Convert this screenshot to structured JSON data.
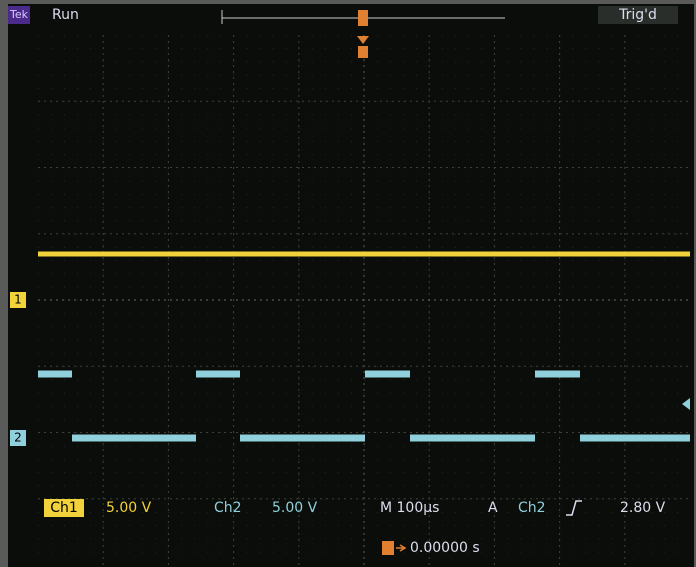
{
  "header": {
    "brand": "Tek",
    "status": "Run",
    "trigger_status": "Trig'd"
  },
  "channels": {
    "ch1_marker": "1",
    "ch2_marker": "2"
  },
  "readout": {
    "ch1_label": "Ch1",
    "ch1_scale": "5.00 V",
    "ch2_label": "Ch2",
    "ch2_scale": "5.00 V",
    "timebase": "M 100µs",
    "trigger_mode": "A",
    "trigger_source": "Ch2",
    "trigger_level": "2.80 V",
    "trigger_position": "0.00000 s"
  }
}
